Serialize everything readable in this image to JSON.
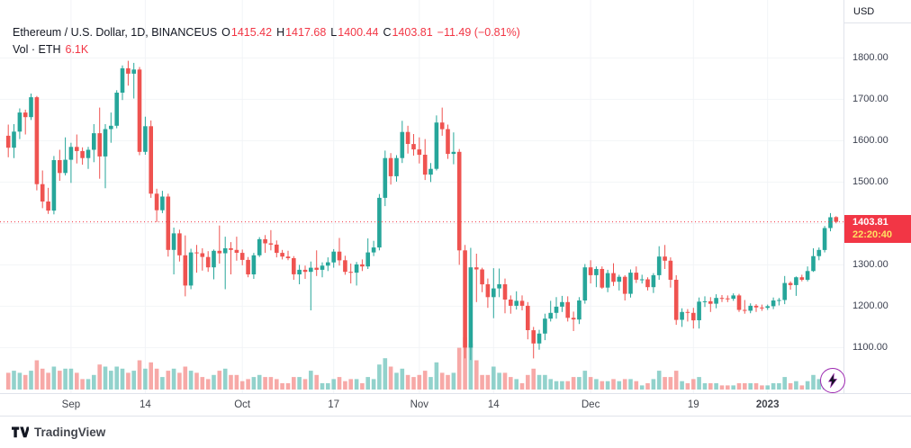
{
  "header": {
    "symbol_title": "Ethereum / U.S. Dollar, 1D, BINANCEUS",
    "ohlc": {
      "o_label": "O",
      "o": "1415.42",
      "h_label": "H",
      "h": "1417.68",
      "l_label": "L",
      "l": "1400.44",
      "c_label": "C",
      "c": "1403.81",
      "change": "−11.49 (−0.81%)"
    },
    "volume_label": "Vol · ETH",
    "volume_value": "6.1K"
  },
  "price_axis": {
    "currency_label": "USD",
    "last_price_badge": {
      "price": "1403.81",
      "countdown": "22:20:40"
    }
  },
  "footer": {
    "brand": "TradingView"
  },
  "icons": {
    "quick_trade": "lightning-icon",
    "logo": "tradingview-logo"
  },
  "colors": {
    "up": "#26a69a",
    "down": "#ef5350",
    "vol_up": "rgba(38,166,154,0.5)",
    "vol_down": "rgba(239,83,80,0.5)",
    "accent_red": "#f23645",
    "badge_countdown_text": "#ffe262",
    "axis_border": "#e0e3eb",
    "grid": "#f2f4f7",
    "text": "#131722",
    "muted": "#42454d"
  },
  "chart_data": {
    "type": "candlestick+volume",
    "title": "Ethereum / U.S. Dollar, 1D, BINANCEUS",
    "symbol": "ETH/USD",
    "exchange": "BINANCEUS",
    "interval": "1D",
    "start_date": "2022-08-21",
    "end_date": "2023-01-13",
    "last_price": 1403.81,
    "price_scale": {
      "min": 990,
      "max": 1940
    },
    "y_ticks": [
      1800,
      1700,
      1600,
      1500,
      1400,
      1300,
      1200,
      1100
    ],
    "x_labels": [
      {
        "label": "Sep",
        "index": 11
      },
      {
        "label": "14",
        "index": 24
      },
      {
        "label": "Oct",
        "index": 41
      },
      {
        "label": "17",
        "index": 57
      },
      {
        "label": "Nov",
        "index": 72
      },
      {
        "label": "14",
        "index": 85
      },
      {
        "label": "Dec",
        "index": 102
      },
      {
        "label": "19",
        "index": 120
      },
      {
        "label": "2023",
        "index": 133,
        "year": true
      }
    ],
    "candles": [
      [
        1612,
        1639,
        1560,
        1583
      ],
      [
        1583,
        1640,
        1558,
        1622
      ],
      [
        1622,
        1678,
        1604,
        1668
      ],
      [
        1668,
        1675,
        1615,
        1657
      ],
      [
        1657,
        1714,
        1650,
        1705
      ],
      [
        1705,
        1708,
        1480,
        1495
      ],
      [
        1495,
        1528,
        1437,
        1453
      ],
      [
        1453,
        1486,
        1423,
        1431
      ],
      [
        1431,
        1563,
        1422,
        1553
      ],
      [
        1553,
        1578,
        1503,
        1522
      ],
      [
        1522,
        1608,
        1516,
        1554
      ],
      [
        1554,
        1595,
        1498,
        1585
      ],
      [
        1585,
        1615,
        1545,
        1575
      ],
      [
        1575,
        1584,
        1542,
        1558
      ],
      [
        1558,
        1585,
        1532,
        1578
      ],
      [
        1578,
        1640,
        1548,
        1618
      ],
      [
        1618,
        1680,
        1508,
        1562
      ],
      [
        1562,
        1640,
        1485,
        1628
      ],
      [
        1628,
        1668,
        1595,
        1636
      ],
      [
        1636,
        1722,
        1630,
        1716
      ],
      [
        1716,
        1782,
        1698,
        1775
      ],
      [
        1775,
        1793,
        1733,
        1762
      ],
      [
        1762,
        1788,
        1702,
        1772
      ],
      [
        1772,
        1778,
        1565,
        1573
      ],
      [
        1573,
        1658,
        1566,
        1635
      ],
      [
        1635,
        1649,
        1462,
        1472
      ],
      [
        1472,
        1484,
        1403,
        1432
      ],
      [
        1432,
        1479,
        1425,
        1465
      ],
      [
        1465,
        1472,
        1320,
        1336
      ],
      [
        1336,
        1390,
        1277,
        1376
      ],
      [
        1376,
        1385,
        1308,
        1323
      ],
      [
        1323,
        1371,
        1224,
        1250
      ],
      [
        1250,
        1339,
        1241,
        1330
      ],
      [
        1330,
        1348,
        1281,
        1328
      ],
      [
        1328,
        1340,
        1286,
        1319
      ],
      [
        1319,
        1333,
        1283,
        1294
      ],
      [
        1294,
        1337,
        1265,
        1334
      ],
      [
        1334,
        1395,
        1303,
        1328
      ],
      [
        1328,
        1368,
        1241,
        1340
      ],
      [
        1340,
        1355,
        1277,
        1336
      ],
      [
        1336,
        1368,
        1310,
        1329
      ],
      [
        1329,
        1337,
        1299,
        1312
      ],
      [
        1312,
        1319,
        1270,
        1277
      ],
      [
        1277,
        1329,
        1266,
        1323
      ],
      [
        1323,
        1367,
        1319,
        1362
      ],
      [
        1362,
        1372,
        1329,
        1352
      ],
      [
        1352,
        1384,
        1335,
        1349
      ],
      [
        1349,
        1359,
        1318,
        1329
      ],
      [
        1329,
        1336,
        1313,
        1320
      ],
      [
        1320,
        1334,
        1311,
        1316
      ],
      [
        1316,
        1321,
        1264,
        1277
      ],
      [
        1277,
        1300,
        1253,
        1288
      ],
      [
        1288,
        1298,
        1266,
        1283
      ],
      [
        1283,
        1308,
        1190,
        1293
      ],
      [
        1293,
        1335,
        1273,
        1288
      ],
      [
        1288,
        1306,
        1270,
        1298
      ],
      [
        1298,
        1318,
        1285,
        1306
      ],
      [
        1306,
        1338,
        1293,
        1332
      ],
      [
        1332,
        1365,
        1298,
        1311
      ],
      [
        1311,
        1322,
        1276,
        1283
      ],
      [
        1283,
        1303,
        1255,
        1281
      ],
      [
        1281,
        1307,
        1250,
        1301
      ],
      [
        1301,
        1313,
        1285,
        1296
      ],
      [
        1296,
        1364,
        1290,
        1330
      ],
      [
        1330,
        1358,
        1321,
        1342
      ],
      [
        1342,
        1471,
        1335,
        1462
      ],
      [
        1462,
        1576,
        1442,
        1558
      ],
      [
        1558,
        1570,
        1494,
        1514
      ],
      [
        1514,
        1565,
        1501,
        1558
      ],
      [
        1558,
        1648,
        1546,
        1621
      ],
      [
        1621,
        1636,
        1569,
        1592
      ],
      [
        1592,
        1616,
        1564,
        1579
      ],
      [
        1579,
        1608,
        1545,
        1566
      ],
      [
        1566,
        1604,
        1505,
        1518
      ],
      [
        1518,
        1546,
        1500,
        1532
      ],
      [
        1532,
        1661,
        1528,
        1644
      ],
      [
        1644,
        1680,
        1612,
        1628
      ],
      [
        1628,
        1639,
        1556,
        1568
      ],
      [
        1568,
        1620,
        1543,
        1573
      ],
      [
        1573,
        1580,
        1300,
        1335
      ],
      [
        1335,
        1348,
        1074,
        1100
      ],
      [
        1100,
        1341,
        1070,
        1294
      ],
      [
        1294,
        1327,
        1210,
        1289
      ],
      [
        1289,
        1293,
        1234,
        1253
      ],
      [
        1253,
        1267,
        1196,
        1222
      ],
      [
        1222,
        1292,
        1171,
        1243
      ],
      [
        1243,
        1291,
        1222,
        1253
      ],
      [
        1253,
        1267,
        1183,
        1216
      ],
      [
        1216,
        1226,
        1182,
        1201
      ],
      [
        1201,
        1236,
        1192,
        1213
      ],
      [
        1213,
        1226,
        1190,
        1201
      ],
      [
        1201,
        1210,
        1120,
        1142
      ],
      [
        1142,
        1150,
        1074,
        1110
      ],
      [
        1110,
        1143,
        1095,
        1134
      ],
      [
        1134,
        1182,
        1118,
        1170
      ],
      [
        1170,
        1213,
        1163,
        1184
      ],
      [
        1184,
        1222,
        1170,
        1199
      ],
      [
        1199,
        1225,
        1186,
        1210
      ],
      [
        1210,
        1224,
        1163,
        1172
      ],
      [
        1172,
        1187,
        1140,
        1168
      ],
      [
        1168,
        1222,
        1157,
        1214
      ],
      [
        1214,
        1302,
        1206,
        1294
      ],
      [
        1294,
        1311,
        1255,
        1275
      ],
      [
        1275,
        1296,
        1246,
        1290
      ],
      [
        1290,
        1296,
        1242,
        1245
      ],
      [
        1245,
        1288,
        1234,
        1280
      ],
      [
        1280,
        1304,
        1249,
        1259
      ],
      [
        1259,
        1276,
        1238,
        1271
      ],
      [
        1271,
        1275,
        1214,
        1230
      ],
      [
        1230,
        1289,
        1221,
        1281
      ],
      [
        1281,
        1296,
        1256,
        1264
      ],
      [
        1264,
        1276,
        1255,
        1265
      ],
      [
        1265,
        1270,
        1238,
        1246
      ],
      [
        1246,
        1280,
        1232,
        1275
      ],
      [
        1275,
        1345,
        1264,
        1320
      ],
      [
        1320,
        1348,
        1290,
        1310
      ],
      [
        1310,
        1318,
        1245,
        1264
      ],
      [
        1264,
        1275,
        1155,
        1167
      ],
      [
        1167,
        1195,
        1150,
        1186
      ],
      [
        1186,
        1193,
        1163,
        1184
      ],
      [
        1184,
        1196,
        1146,
        1166
      ],
      [
        1166,
        1221,
        1146,
        1211
      ],
      [
        1211,
        1224,
        1198,
        1212
      ],
      [
        1212,
        1222,
        1186,
        1206
      ],
      [
        1206,
        1229,
        1195,
        1220
      ],
      [
        1220,
        1227,
        1210,
        1219
      ],
      [
        1219,
        1226,
        1210,
        1218
      ],
      [
        1218,
        1231,
        1213,
        1226
      ],
      [
        1226,
        1230,
        1186,
        1191
      ],
      [
        1191,
        1215,
        1182,
        1189
      ],
      [
        1189,
        1207,
        1183,
        1201
      ],
      [
        1201,
        1205,
        1186,
        1197
      ],
      [
        1197,
        1204,
        1189,
        1196
      ],
      [
        1196,
        1204,
        1191,
        1200
      ],
      [
        1200,
        1221,
        1193,
        1214
      ],
      [
        1214,
        1220,
        1202,
        1215
      ],
      [
        1215,
        1273,
        1205,
        1256
      ],
      [
        1256,
        1260,
        1240,
        1251
      ],
      [
        1251,
        1272,
        1225,
        1270
      ],
      [
        1270,
        1276,
        1260,
        1264
      ],
      [
        1264,
        1296,
        1260,
        1285
      ],
      [
        1285,
        1340,
        1283,
        1321
      ],
      [
        1321,
        1342,
        1311,
        1336
      ],
      [
        1336,
        1394,
        1330,
        1389
      ],
      [
        1389,
        1425,
        1381,
        1415
      ],
      [
        1415.42,
        1417.68,
        1400.44,
        1403.81
      ]
    ],
    "volumes_k": [
      8,
      9,
      8,
      7,
      9,
      14,
      10,
      8,
      11,
      9,
      10,
      10,
      8,
      5,
      5,
      7,
      12,
      11,
      9,
      11,
      10,
      8,
      9,
      14,
      10,
      13,
      10,
      6,
      9,
      10,
      8,
      11,
      9,
      8,
      6,
      5,
      7,
      9,
      10,
      7,
      7,
      4,
      5,
      6,
      7,
      6,
      6,
      5,
      3,
      3,
      6,
      6,
      5,
      9,
      7,
      3,
      3,
      5,
      6,
      4,
      5,
      5,
      3,
      6,
      5,
      12,
      15,
      11,
      8,
      10,
      7,
      6,
      7,
      9,
      6,
      13,
      8,
      7,
      8,
      20,
      25,
      22,
      14,
      7,
      7,
      11,
      8,
      8,
      6,
      5,
      3,
      7,
      10,
      7,
      7,
      5,
      4,
      4,
      4,
      6,
      6,
      9,
      6,
      5,
      4,
      4,
      5,
      4,
      5,
      5,
      4,
      2,
      3,
      5,
      9,
      6,
      6,
      9,
      4,
      3,
      5,
      6,
      3,
      3,
      3,
      2,
      2,
      2,
      3,
      3,
      3,
      3,
      2,
      2,
      3,
      3,
      6,
      3,
      4,
      2,
      4,
      7,
      5,
      8,
      10,
      6.1
    ]
  }
}
